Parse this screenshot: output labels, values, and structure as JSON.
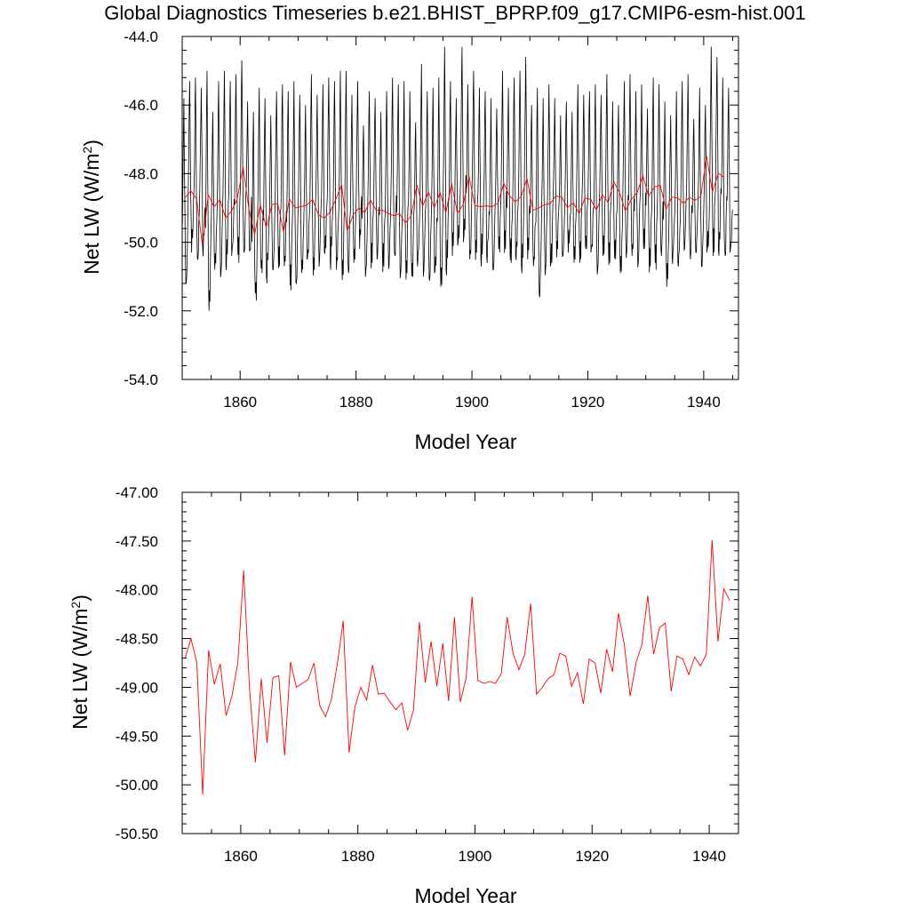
{
  "title": "Global Diagnostics Timeseries b.e21.BHIST_BPRP.f09_g17.CMIP6-esm-hist.001",
  "colors": {
    "monthly": "#000000",
    "annual": "#ff0000",
    "axis": "#000000"
  },
  "chart_data": [
    {
      "type": "line",
      "name": "monthly-and-annual",
      "xlabel": "Model Year",
      "ylabel_main": "Net LW (W/m",
      "ylabel_sup": "2",
      "ylabel_close": ")",
      "xlim": [
        1850,
        1946
      ],
      "ylim": [
        -54.0,
        -44.0
      ],
      "xticks": [
        1860,
        1880,
        1900,
        1920,
        1940
      ],
      "xtick_labels": [
        "1860",
        "1880",
        "1900",
        "1920",
        "1940"
      ],
      "yticks": [
        -54,
        -52,
        -50,
        -48,
        -46,
        -44
      ],
      "ytick_labels": [
        "-54.0",
        "-52.0",
        "-50.0",
        "-48.0",
        "-46.0",
        "-44.0"
      ],
      "series": [
        {
          "name": "monthly",
          "color": "#000000",
          "start_year": 1850,
          "values_per_year": 12,
          "annual_peaks": [
            -45.8,
            -45.3,
            -45.2,
            -45.5,
            -45.0,
            -46.2,
            -45.3,
            -45.0,
            -45.3,
            -45.1,
            -44.7,
            -45.9,
            -46.2,
            -45.5,
            -45.8,
            -46.3,
            -45.6,
            -45.4,
            -45.6,
            -45.3,
            -45.7,
            -46.0,
            -45.1,
            -45.7,
            -45.4,
            -45.2,
            -45.3,
            -45.0,
            -45.0,
            -45.7,
            -45.3,
            -46.6,
            -45.6,
            -45.8,
            -46.2,
            -45.6,
            -45.2,
            -45.4,
            -45.3,
            -45.6,
            -46.5,
            -44.8,
            -45.6,
            -45.5,
            -45.2,
            -44.3,
            -45.3,
            -45.8,
            -44.3,
            -45.4,
            -45.0,
            -45.5,
            -45.6,
            -45.8,
            -46.1,
            -45.0,
            -45.5,
            -45.2,
            -45.0,
            -44.6,
            -46.0,
            -45.5,
            -45.8,
            -45.4,
            -45.8,
            -46.3,
            -45.9,
            -46.2,
            -45.4,
            -45.7,
            -45.6,
            -45.4,
            -45.7,
            -45.1,
            -45.9,
            -46.0,
            -45.3,
            -45.1,
            -45.6,
            -45.4,
            -46.1,
            -45.2,
            -45.4,
            -45.9,
            -46.3,
            -45.6,
            -45.3,
            -45.1,
            -46.4,
            -45.5,
            -46.0,
            -44.3,
            -44.6,
            -45.2,
            -45.5
          ],
          "annual_troughs": [
            -51.2,
            -50.3,
            -50.5,
            -50.2,
            -52.0,
            -50.8,
            -50.9,
            -50.7,
            -50.4,
            -50.6,
            -50.3,
            -50.2,
            -51.7,
            -50.9,
            -51.0,
            -50.8,
            -50.7,
            -50.7,
            -51.4,
            -51.2,
            -50.9,
            -50.5,
            -50.8,
            -50.5,
            -50.3,
            -50.6,
            -50.8,
            -51.1,
            -50.9,
            -50.6,
            -50.2,
            -50.8,
            -50.6,
            -50.4,
            -50.7,
            -50.7,
            -50.4,
            -50.9,
            -50.9,
            -51.0,
            -50.5,
            -50.8,
            -51.1,
            -50.9,
            -51.3,
            -50.8,
            -50.4,
            -50.1,
            -50.0,
            -50.5,
            -50.3,
            -50.5,
            -50.4,
            -50.8,
            -50.3,
            -50.2,
            -50.6,
            -50.4,
            -50.7,
            -50.5,
            -50.7,
            -51.6,
            -50.8,
            -50.7,
            -50.2,
            -50.4,
            -50.3,
            -50.5,
            -50.6,
            -50.2,
            -50.3,
            -50.8,
            -50.4,
            -50.6,
            -50.5,
            -50.9,
            -50.3,
            -50.4,
            -50.6,
            -50.2,
            -50.7,
            -50.8,
            -50.4,
            -51.3,
            -50.4,
            -50.6,
            -50.2,
            -50.5,
            -50.3,
            -50.7,
            -50.3,
            -50.4,
            -50.2,
            -50.4,
            -50.3
          ]
        },
        {
          "name": "annual-mean",
          "color": "#ff0000",
          "x_start": 1850.5,
          "values": [
            -48.7,
            -48.5,
            -48.75,
            -50.1,
            -48.62,
            -48.97,
            -48.76,
            -49.29,
            -49.09,
            -48.75,
            -47.8,
            -49.02,
            -49.77,
            -48.91,
            -49.57,
            -48.9,
            -48.88,
            -49.7,
            -48.74,
            -49.0,
            -48.96,
            -48.92,
            -48.75,
            -49.19,
            -49.3,
            -49.12,
            -48.76,
            -48.32,
            -49.67,
            -49.2,
            -49.0,
            -49.13,
            -48.77,
            -49.07,
            -49.06,
            -49.15,
            -49.23,
            -49.16,
            -49.44,
            -49.23,
            -48.33,
            -48.95,
            -48.53,
            -48.99,
            -48.55,
            -49.14,
            -48.28,
            -49.15,
            -48.9,
            -48.07,
            -48.93,
            -48.96,
            -48.94,
            -48.96,
            -48.86,
            -48.28,
            -48.65,
            -48.82,
            -48.66,
            -48.14,
            -49.07,
            -49.0,
            -48.91,
            -48.87,
            -48.65,
            -48.68,
            -48.99,
            -48.85,
            -49.17,
            -48.71,
            -48.75,
            -49.06,
            -48.61,
            -48.84,
            -48.24,
            -48.56,
            -49.09,
            -48.75,
            -48.56,
            -48.06,
            -48.66,
            -48.39,
            -48.34,
            -49.04,
            -48.68,
            -48.71,
            -48.87,
            -48.69,
            -48.78,
            -48.66,
            -47.49,
            -48.53,
            -47.99,
            -48.11
          ]
        }
      ]
    },
    {
      "type": "line",
      "name": "annual-only",
      "xlabel": "Model Year",
      "ylabel_main": "Net LW (W/m",
      "ylabel_sup": "2",
      "ylabel_close": ")",
      "xlim": [
        1850,
        1945
      ],
      "ylim": [
        -50.5,
        -47.0
      ],
      "xticks": [
        1860,
        1880,
        1900,
        1920,
        1940
      ],
      "xtick_labels": [
        "1860",
        "1880",
        "1900",
        "1920",
        "1940"
      ],
      "yticks": [
        -50.5,
        -50.0,
        -49.5,
        -49.0,
        -48.5,
        -48.0,
        -47.5,
        -47.0
      ],
      "ytick_labels": [
        "-50.50",
        "-50.00",
        "-49.50",
        "-49.00",
        "-48.50",
        "-48.00",
        "-47.50",
        "-47.00"
      ],
      "series": [
        {
          "name": "annual-mean",
          "color": "#ff0000",
          "x_start": 1850.5,
          "same_as": "panel1.annual-mean"
        }
      ]
    }
  ]
}
